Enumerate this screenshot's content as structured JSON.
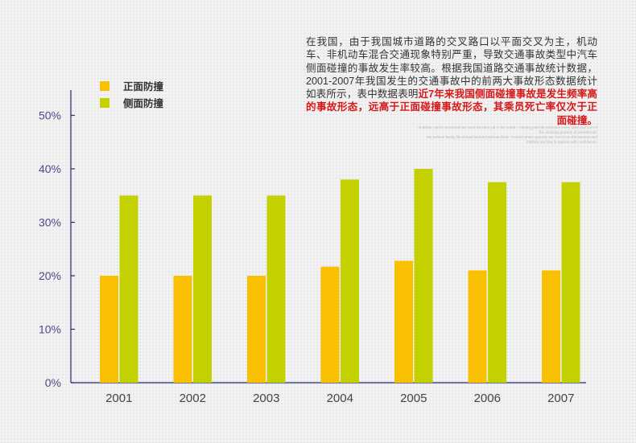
{
  "description": {
    "plain": "在我国，由于我国城市道路的交叉路口以平面交叉为主，机动车、非机动车混合交通现象特别严重，导致交通事故类型中汽车侧面碰撞的事故发生率较高。根据我国道路交通事故统计数据，2001-2007年我国发生的交通事故中的前两大事故形态数据统计如表所示，表中数据表明",
    "highlight": "近7年来我国侧面碰撞事故是发生频率高的事故形态，远高于正面碰撞事故形态，其乘员死亡率仅次于正面碰撞。"
  },
  "fine_print": {
    "line1": "At Britax, we're convinced we have the best job in the world – helping parents embrace every twist and turn of",
    "line2": "the amazing journey of parenthood.",
    "line3": "We believe family life should be lived without limits. A world where parents are free to be themselves and",
    "line4": "children are free to explore with confidence."
  },
  "colors": {
    "front": "#f8c000",
    "side": "#c4d100",
    "axis": "#232a78",
    "tick_label": "#4a4a8a"
  },
  "chart_data": {
    "type": "bar",
    "categories": [
      "2001",
      "2002",
      "2003",
      "2004",
      "2005",
      "2006",
      "2007"
    ],
    "series": [
      {
        "name": "正面防撞",
        "color": "#f8c000",
        "values": [
          20,
          20,
          20,
          21.7,
          22.8,
          21,
          21
        ]
      },
      {
        "name": "侧面防撞",
        "color": "#c4d100",
        "values": [
          35,
          35,
          35,
          38,
          40,
          37.5,
          37.5
        ]
      }
    ],
    "yticks": [
      "0%",
      "10%",
      "20%",
      "30%",
      "40%",
      "50%"
    ],
    "ylim": [
      0,
      50
    ],
    "ylabel": "",
    "xlabel": "",
    "legend_position": "top-left",
    "grid": false
  }
}
